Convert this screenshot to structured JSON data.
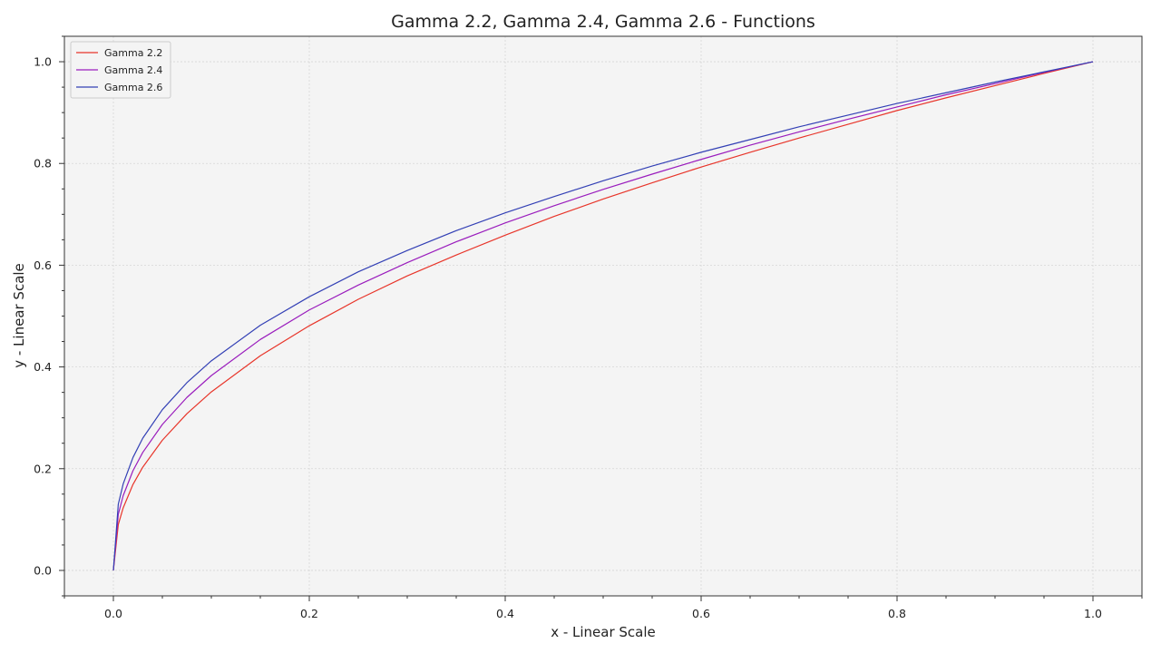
{
  "chart_data": {
    "type": "line",
    "title": "Gamma 2.2, Gamma 2.4, Gamma 2.6 - Functions",
    "xlabel": "x - Linear Scale",
    "ylabel": "y - Linear Scale",
    "xlim": [
      -0.05,
      1.05
    ],
    "ylim": [
      -0.05,
      1.05
    ],
    "xticks": [
      "0.0",
      "0.2",
      "0.4",
      "0.6",
      "0.8",
      "1.0"
    ],
    "yticks": [
      "0.0",
      "0.2",
      "0.4",
      "0.6",
      "0.8",
      "1.0"
    ],
    "grid": true,
    "legend_position": "top-left",
    "background": "#f4f4f4",
    "x": [
      0,
      0.005,
      0.01,
      0.02,
      0.03,
      0.05,
      0.075,
      0.1,
      0.15,
      0.2,
      0.25,
      0.3,
      0.35,
      0.4,
      0.45,
      0.5,
      0.55,
      0.6,
      0.65,
      0.7,
      0.75,
      0.8,
      0.85,
      0.9,
      0.95,
      1.0
    ],
    "series": [
      {
        "name": "Gamma 2.2",
        "color": "#e8352a",
        "values": [
          0,
          0.09,
          0.123,
          0.169,
          0.203,
          0.256,
          0.308,
          0.351,
          0.422,
          0.481,
          0.533,
          0.579,
          0.62,
          0.659,
          0.696,
          0.73,
          0.762,
          0.793,
          0.822,
          0.85,
          0.877,
          0.904,
          0.929,
          0.953,
          0.977,
          1.0
        ]
      },
      {
        "name": "Gamma 2.4",
        "color": "#9a1dbd",
        "values": [
          0,
          0.11,
          0.147,
          0.196,
          0.232,
          0.287,
          0.34,
          0.383,
          0.454,
          0.512,
          0.561,
          0.605,
          0.646,
          0.683,
          0.717,
          0.749,
          0.779,
          0.808,
          0.836,
          0.862,
          0.887,
          0.911,
          0.935,
          0.957,
          0.979,
          1.0
        ]
      },
      {
        "name": "Gamma 2.6",
        "color": "#3340b5",
        "values": [
          0,
          0.13,
          0.17,
          0.222,
          0.26,
          0.316,
          0.369,
          0.412,
          0.482,
          0.538,
          0.587,
          0.629,
          0.668,
          0.703,
          0.735,
          0.766,
          0.795,
          0.822,
          0.847,
          0.872,
          0.895,
          0.918,
          0.939,
          0.96,
          0.98,
          1.0
        ]
      }
    ]
  }
}
